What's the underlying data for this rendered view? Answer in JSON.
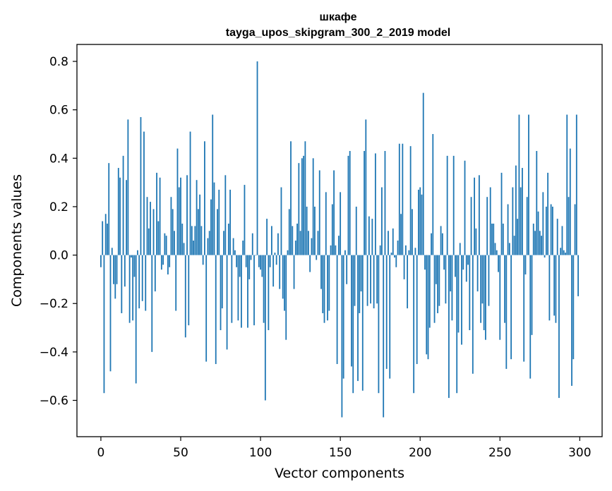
{
  "chart_data": {
    "type": "bar",
    "title": "шкафе",
    "subtitle": "tayga_upos_skipgram_300_2_2019 model",
    "xlabel": "Vector components",
    "ylabel": "Components values",
    "xlim": [
      -15,
      314
    ],
    "ylim": [
      -0.75,
      0.87
    ],
    "xticks": [
      0,
      50,
      100,
      150,
      200,
      250,
      300
    ],
    "xtick_labels": [
      "0",
      "50",
      "100",
      "150",
      "200",
      "250",
      "300"
    ],
    "yticks": [
      -0.6,
      -0.4,
      -0.2,
      0.0,
      0.2,
      0.4,
      0.6,
      0.8
    ],
    "ytick_labels": [
      "−0.6",
      "−0.4",
      "−0.2",
      "0.0",
      "0.2",
      "0.4",
      "0.6",
      "0.8"
    ],
    "grid": false,
    "bar_color": "#1f77b4",
    "x": [
      0,
      1,
      2,
      3,
      4,
      5,
      6,
      7,
      8,
      9,
      10,
      11,
      12,
      13,
      14,
      15,
      16,
      17,
      18,
      19,
      20,
      21,
      22,
      23,
      24,
      25,
      26,
      27,
      28,
      29,
      30,
      31,
      32,
      33,
      34,
      35,
      36,
      37,
      38,
      39,
      40,
      41,
      42,
      43,
      44,
      45,
      46,
      47,
      48,
      49,
      50,
      51,
      52,
      53,
      54,
      55,
      56,
      57,
      58,
      59,
      60,
      61,
      62,
      63,
      64,
      65,
      66,
      67,
      68,
      69,
      70,
      71,
      72,
      73,
      74,
      75,
      76,
      77,
      78,
      79,
      80,
      81,
      82,
      83,
      84,
      85,
      86,
      87,
      88,
      89,
      90,
      91,
      92,
      93,
      94,
      95,
      96,
      97,
      98,
      99,
      100,
      101,
      102,
      103,
      104,
      105,
      106,
      107,
      108,
      109,
      110,
      111,
      112,
      113,
      114,
      115,
      116,
      117,
      118,
      119,
      120,
      121,
      122,
      123,
      124,
      125,
      126,
      127,
      128,
      129,
      130,
      131,
      132,
      133,
      134,
      135,
      136,
      137,
      138,
      139,
      140,
      141,
      142,
      143,
      144,
      145,
      146,
      147,
      148,
      149,
      150,
      151,
      152,
      153,
      154,
      155,
      156,
      157,
      158,
      159,
      160,
      161,
      162,
      163,
      164,
      165,
      166,
      167,
      168,
      169,
      170,
      171,
      172,
      173,
      174,
      175,
      176,
      177,
      178,
      179,
      180,
      181,
      182,
      183,
      184,
      185,
      186,
      187,
      188,
      189,
      190,
      191,
      192,
      193,
      194,
      195,
      196,
      197,
      198,
      199,
      200,
      201,
      202,
      203,
      204,
      205,
      206,
      207,
      208,
      209,
      210,
      211,
      212,
      213,
      214,
      215,
      216,
      217,
      218,
      219,
      220,
      221,
      222,
      223,
      224,
      225,
      226,
      227,
      228,
      229,
      230,
      231,
      232,
      233,
      234,
      235,
      236,
      237,
      238,
      239,
      240,
      241,
      242,
      243,
      244,
      245,
      246,
      247,
      248,
      249,
      250,
      251,
      252,
      253,
      254,
      255,
      256,
      257,
      258,
      259,
      260,
      261,
      262,
      263,
      264,
      265,
      266,
      267,
      268,
      269,
      270,
      271,
      272,
      273,
      274,
      275,
      276,
      277,
      278,
      279,
      280,
      281,
      282,
      283,
      284,
      285,
      286,
      287,
      288,
      289,
      290,
      291,
      292,
      293,
      294,
      295,
      296,
      297,
      298,
      299
    ],
    "values": [
      -0.05,
      0.14,
      -0.57,
      0.17,
      0.13,
      0.38,
      -0.48,
      0.03,
      -0.12,
      -0.18,
      -0.12,
      0.36,
      0.32,
      -0.24,
      0.41,
      -0.13,
      0.31,
      0.56,
      -0.28,
      -0.01,
      -0.27,
      -0.09,
      -0.53,
      0.02,
      -0.22,
      0.57,
      -0.19,
      0.51,
      -0.23,
      0.24,
      0.11,
      0.22,
      -0.4,
      0.19,
      -0.15,
      0.34,
      0.14,
      0.32,
      -0.06,
      -0.04,
      0.09,
      0.08,
      -0.08,
      -0.05,
      0.24,
      0.19,
      0.1,
      -0.23,
      0.44,
      0.28,
      0.32,
      0.13,
      0.05,
      -0.34,
      0.33,
      -0.29,
      0.51,
      0.12,
      0.06,
      0.12,
      0.31,
      0.19,
      0.25,
      0.12,
      -0.04,
      0.47,
      -0.44,
      0.07,
      0.1,
      0.23,
      0.58,
      0.3,
      -0.45,
      0.19,
      0.27,
      -0.31,
      -0.22,
      0.1,
      0.33,
      -0.39,
      0.13,
      0.27,
      -0.28,
      0.07,
      0.02,
      -0.05,
      -0.27,
      -0.09,
      -0.3,
      0.06,
      0.29,
      -0.05,
      -0.3,
      -0.1,
      -0.02,
      0.09,
      -0.29,
      0.0,
      0.8,
      -0.05,
      -0.06,
      -0.09,
      -0.28,
      -0.6,
      0.15,
      -0.31,
      -0.05,
      0.12,
      -0.13,
      0.01,
      -0.04,
      0.09,
      -0.14,
      0.28,
      -0.18,
      -0.23,
      -0.35,
      0.02,
      0.19,
      0.47,
      0.12,
      -0.14,
      0.06,
      0.13,
      0.38,
      0.1,
      0.4,
      0.41,
      0.47,
      0.2,
      0.1,
      -0.07,
      0.07,
      0.4,
      0.2,
      -0.02,
      0.1,
      0.35,
      -0.14,
      -0.24,
      -0.28,
      0.26,
      -0.27,
      -0.23,
      0.04,
      0.21,
      0.35,
      0.04,
      -0.45,
      0.08,
      0.26,
      -0.67,
      -0.51,
      0.02,
      -0.12,
      0.41,
      0.43,
      -0.46,
      -0.57,
      -0.21,
      0.2,
      -0.52,
      -0.24,
      -0.15,
      -0.56,
      0.43,
      0.56,
      -0.21,
      0.16,
      -0.2,
      0.15,
      -0.22,
      0.42,
      -0.2,
      -0.57,
      0.04,
      0.28,
      -0.67,
      0.43,
      -0.47,
      0.1,
      -0.51,
      0.01,
      0.11,
      -0.01,
      -0.05,
      0.06,
      0.46,
      0.17,
      0.46,
      -0.1,
      0.04,
      -0.22,
      0.02,
      0.45,
      0.19,
      -0.57,
      0.03,
      -0.45,
      0.27,
      0.28,
      0.25,
      0.67,
      -0.06,
      -0.41,
      -0.43,
      -0.3,
      0.09,
      0.5,
      -0.28,
      -0.12,
      -0.24,
      -0.21,
      0.12,
      0.09,
      -0.06,
      -0.2,
      0.41,
      -0.59,
      -0.15,
      -0.27,
      0.41,
      -0.09,
      -0.57,
      -0.32,
      0.05,
      -0.37,
      -0.06,
      0.39,
      -0.11,
      -0.04,
      -0.31,
      0.24,
      -0.49,
      0.32,
      0.11,
      -0.15,
      0.33,
      -0.28,
      -0.2,
      -0.31,
      -0.35,
      0.24,
      -0.21,
      0.28,
      0.13,
      0.13,
      0.05,
      0.02,
      -0.07,
      -0.35,
      0.34,
      0.13,
      -0.28,
      -0.47,
      0.21,
      0.05,
      -0.43,
      0.28,
      0.08,
      0.37,
      0.15,
      0.58,
      0.28,
      0.36,
      -0.44,
      -0.08,
      0.24,
      0.58,
      -0.51,
      -0.33,
      0.13,
      0.1,
      0.43,
      0.18,
      0.1,
      0.08,
      0.26,
      -0.01,
      0.2,
      0.34,
      -0.27,
      0.21,
      0.2,
      -0.25,
      -0.28,
      0.15,
      -0.59,
      0.03,
      0.12,
      0.02,
      0.01,
      0.58,
      0.24,
      0.44,
      -0.54,
      -0.43,
      0.21,
      0.58,
      -0.17
    ]
  }
}
